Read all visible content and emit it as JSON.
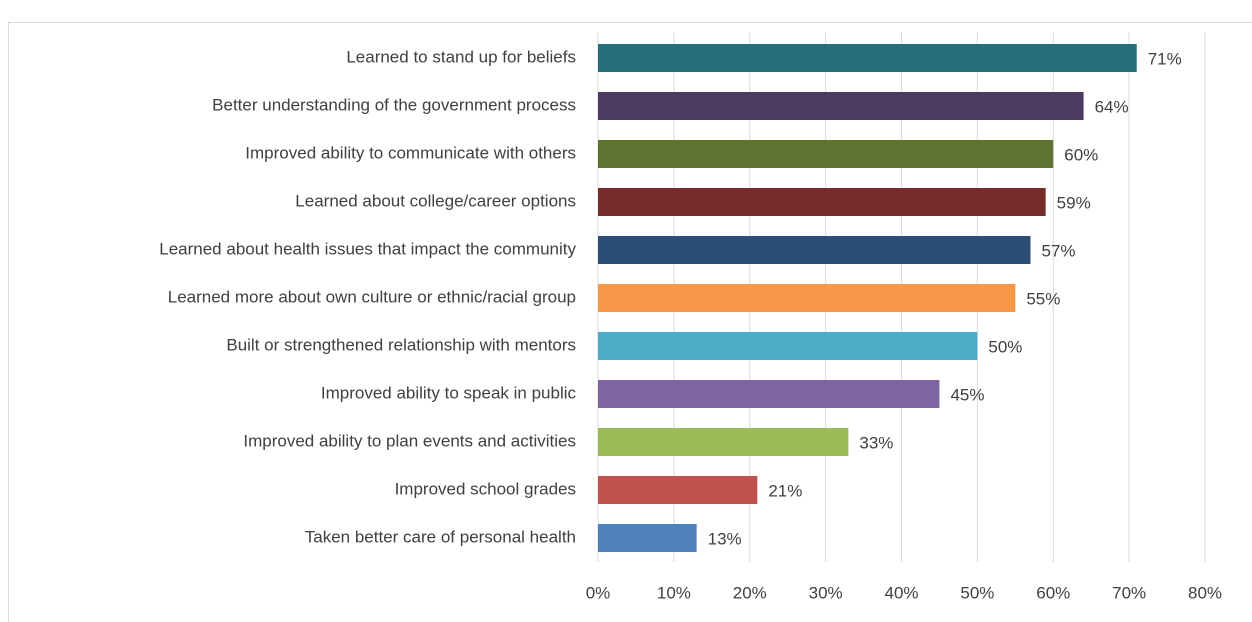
{
  "chart_data": {
    "type": "bar",
    "orientation": "horizontal",
    "categories": [
      "Learned to stand up for beliefs",
      "Better understanding of the government process",
      "Improved ability to communicate with others",
      "Learned about college/career options",
      "Learned about health issues that impact the community",
      "Learned more about own culture or ethnic/racial group",
      "Built or strengthened relationship with mentors",
      "Improved ability to speak in public",
      "Improved ability to plan events and activities",
      "Improved school grades",
      "Taken better care of personal health"
    ],
    "values": [
      71,
      64,
      60,
      59,
      57,
      55,
      50,
      45,
      33,
      21,
      13
    ],
    "value_labels": [
      "71%",
      "64%",
      "60%",
      "59%",
      "57%",
      "55%",
      "50%",
      "45%",
      "33%",
      "21%",
      "13%"
    ],
    "colors": [
      "#256d7b",
      "#4d3b61",
      "#5f7330",
      "#772b2b",
      "#2c4d75",
      "#f79646",
      "#4bacc6",
      "#8064a2",
      "#9bbb59",
      "#c0504d",
      "#4f81bd"
    ],
    "xlim": [
      0,
      80
    ],
    "xticks": [
      {
        "value": 0,
        "label": "0%"
      },
      {
        "value": 10,
        "label": "10%"
      },
      {
        "value": 20,
        "label": "20%"
      },
      {
        "value": 30,
        "label": "30%"
      },
      {
        "value": 40,
        "label": "40%"
      },
      {
        "value": 50,
        "label": "50%"
      },
      {
        "value": 60,
        "label": "60%"
      },
      {
        "value": 70,
        "label": "70%"
      },
      {
        "value": 80,
        "label": "80%"
      }
    ],
    "grid": true
  }
}
